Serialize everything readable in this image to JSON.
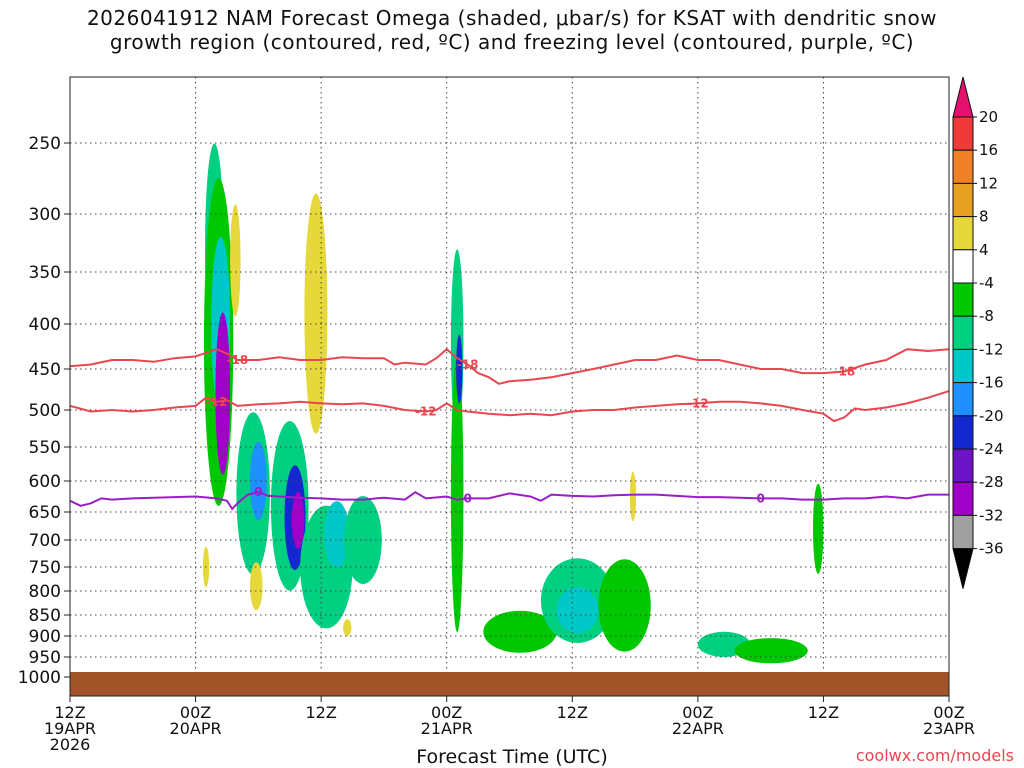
{
  "title_line1": "2026041912 NAM Forecast Omega (shaded, μbar/s) for KSAT with dendritic snow",
  "title_line2": "growth region (contoured, red, ºC) and freezing level (contoured, purple, ºC)",
  "xaxis_title": "Forecast Time (UTC)",
  "credit": "coolwx.com/models",
  "chart_data": {
    "type": "heatmap",
    "yaxis": {
      "ticks": [
        250,
        300,
        350,
        400,
        450,
        500,
        550,
        600,
        650,
        700,
        750,
        800,
        850,
        900,
        950,
        1000
      ],
      "range": [
        1000,
        200
      ],
      "units": "hPa"
    },
    "xaxis": {
      "ticks": [
        {
          "hour": 0,
          "line1": "12Z",
          "line2": "19APR",
          "line3": "2026"
        },
        {
          "hour": 12,
          "line1": "00Z",
          "line2": "20APR",
          "line3": ""
        },
        {
          "hour": 24,
          "line1": "12Z",
          "line2": "",
          "line3": ""
        },
        {
          "hour": 36,
          "line1": "00Z",
          "line2": "21APR",
          "line3": ""
        },
        {
          "hour": 48,
          "line1": "12Z",
          "line2": "",
          "line3": ""
        },
        {
          "hour": 60,
          "line1": "00Z",
          "line2": "22APR",
          "line3": ""
        },
        {
          "hour": 72,
          "line1": "12Z",
          "line2": "",
          "line3": ""
        },
        {
          "hour": 84,
          "line1": "00Z",
          "line2": "23APR",
          "line3": ""
        }
      ],
      "range": [
        0,
        84
      ]
    },
    "colorbar": {
      "labels": [
        "20",
        "16",
        "12",
        "8",
        "4",
        "-4",
        "-8",
        "-12",
        "-16",
        "-20",
        "-24",
        "-28",
        "-32",
        "-36"
      ],
      "colors": [
        "#e3106e",
        "#f03a3a",
        "#f08026",
        "#e8a020",
        "#e6d83a",
        "#ffffff",
        "#00c800",
        "#00d080",
        "#00c8c8",
        "#1e90ff",
        "#1428d2",
        "#6e14c8",
        "#a000c8",
        "#a0a0a0",
        "#000000"
      ]
    },
    "contours": [
      {
        "name": "dgz_minus18",
        "label": "-18",
        "color": "#e8474f",
        "points": [
          [
            0,
            447
          ],
          [
            2,
            445
          ],
          [
            4,
            440
          ],
          [
            6,
            440
          ],
          [
            8,
            442
          ],
          [
            10,
            438
          ],
          [
            12,
            436
          ],
          [
            13,
            432
          ],
          [
            14,
            428
          ],
          [
            15,
            433
          ],
          [
            16,
            440
          ],
          [
            18,
            440
          ],
          [
            20,
            437
          ],
          [
            22,
            440
          ],
          [
            24,
            440
          ],
          [
            26,
            437
          ],
          [
            28,
            438
          ],
          [
            30,
            438
          ],
          [
            31,
            445
          ],
          [
            32,
            443
          ],
          [
            34,
            445
          ],
          [
            35,
            438
          ],
          [
            36,
            428
          ],
          [
            37,
            438
          ],
          [
            38,
            445
          ],
          [
            39,
            455
          ],
          [
            40,
            460
          ],
          [
            41,
            468
          ],
          [
            42,
            465
          ],
          [
            44,
            463
          ],
          [
            46,
            460
          ],
          [
            48,
            455
          ],
          [
            50,
            450
          ],
          [
            52,
            445
          ],
          [
            54,
            440
          ],
          [
            56,
            440
          ],
          [
            58,
            435
          ],
          [
            60,
            440
          ],
          [
            62,
            440
          ],
          [
            64,
            445
          ],
          [
            66,
            450
          ],
          [
            68,
            450
          ],
          [
            70,
            455
          ],
          [
            72,
            455
          ],
          [
            74,
            453
          ],
          [
            76,
            445
          ],
          [
            78,
            440
          ],
          [
            80,
            428
          ],
          [
            82,
            430
          ],
          [
            84,
            428
          ]
        ]
      },
      {
        "name": "dgz_minus12",
        "label": "-12",
        "color": "#e8474f",
        "points": [
          [
            0,
            495
          ],
          [
            2,
            502
          ],
          [
            4,
            500
          ],
          [
            6,
            502
          ],
          [
            8,
            500
          ],
          [
            10,
            497
          ],
          [
            12,
            495
          ],
          [
            13,
            485
          ],
          [
            14,
            490
          ],
          [
            15,
            488
          ],
          [
            16,
            495
          ],
          [
            18,
            493
          ],
          [
            20,
            492
          ],
          [
            22,
            490
          ],
          [
            24,
            492
          ],
          [
            26,
            493
          ],
          [
            28,
            492
          ],
          [
            30,
            495
          ],
          [
            32,
            500
          ],
          [
            34,
            502
          ],
          [
            35,
            500
          ],
          [
            36,
            492
          ],
          [
            37,
            500
          ],
          [
            38,
            502
          ],
          [
            40,
            505
          ],
          [
            42,
            507
          ],
          [
            44,
            505
          ],
          [
            46,
            507
          ],
          [
            48,
            502
          ],
          [
            50,
            500
          ],
          [
            52,
            500
          ],
          [
            54,
            497
          ],
          [
            56,
            495
          ],
          [
            58,
            493
          ],
          [
            60,
            492
          ],
          [
            62,
            490
          ],
          [
            64,
            490
          ],
          [
            66,
            492
          ],
          [
            68,
            495
          ],
          [
            70,
            500
          ],
          [
            72,
            505
          ],
          [
            73,
            515
          ],
          [
            74,
            510
          ],
          [
            75,
            498
          ],
          [
            76,
            500
          ],
          [
            78,
            497
          ],
          [
            80,
            492
          ],
          [
            82,
            485
          ],
          [
            84,
            477
          ]
        ]
      },
      {
        "name": "freezing_level",
        "label": "0",
        "color": "#9a1ec8",
        "points": [
          [
            0,
            632
          ],
          [
            1,
            640
          ],
          [
            2,
            636
          ],
          [
            3,
            628
          ],
          [
            4,
            630
          ],
          [
            6,
            628
          ],
          [
            8,
            627
          ],
          [
            10,
            626
          ],
          [
            12,
            625
          ],
          [
            14,
            628
          ],
          [
            15,
            632
          ],
          [
            15.5,
            645
          ],
          [
            16,
            636
          ],
          [
            17,
            622
          ],
          [
            18,
            618
          ],
          [
            19,
            624
          ],
          [
            20,
            625
          ],
          [
            22,
            627
          ],
          [
            24,
            628
          ],
          [
            26,
            630
          ],
          [
            28,
            630
          ],
          [
            30,
            627
          ],
          [
            32,
            630
          ],
          [
            33,
            618
          ],
          [
            34,
            628
          ],
          [
            36,
            625
          ],
          [
            37,
            630
          ],
          [
            38,
            628
          ],
          [
            40,
            628
          ],
          [
            42,
            620
          ],
          [
            44,
            625
          ],
          [
            45,
            632
          ],
          [
            46,
            622
          ],
          [
            48,
            624
          ],
          [
            50,
            625
          ],
          [
            52,
            623
          ],
          [
            54,
            622
          ],
          [
            56,
            622
          ],
          [
            58,
            624
          ],
          [
            60,
            626
          ],
          [
            62,
            626
          ],
          [
            64,
            627
          ],
          [
            66,
            628
          ],
          [
            68,
            628
          ],
          [
            70,
            630
          ],
          [
            72,
            630
          ],
          [
            74,
            628
          ],
          [
            76,
            628
          ],
          [
            78,
            625
          ],
          [
            80,
            628
          ],
          [
            82,
            622
          ],
          [
            84,
            622
          ]
        ]
      }
    ],
    "omega_blobs": [
      {
        "hour": 13.8,
        "p": 330,
        "rx": 0.9,
        "rp": 90,
        "value": -8
      },
      {
        "hour": 14.2,
        "p": 420,
        "rx": 1.4,
        "rp": 175,
        "value": -6
      },
      {
        "hour": 14.4,
        "p": 400,
        "rx": 0.9,
        "rp": 90,
        "value": -14
      },
      {
        "hour": 14.6,
        "p": 480,
        "rx": 0.7,
        "rp": 100,
        "value": -28
      },
      {
        "hour": 15.8,
        "p": 340,
        "rx": 0.5,
        "rp": 50,
        "value": 4
      },
      {
        "hour": 17.5,
        "p": 620,
        "rx": 1.6,
        "rp": 130,
        "value": -8
      },
      {
        "hour": 18.0,
        "p": 600,
        "rx": 0.8,
        "rp": 60,
        "value": -18
      },
      {
        "hour": 21.0,
        "p": 640,
        "rx": 1.8,
        "rp": 140,
        "value": -10
      },
      {
        "hour": 21.5,
        "p": 660,
        "rx": 1.0,
        "rp": 90,
        "value": -20
      },
      {
        "hour": 21.8,
        "p": 665,
        "rx": 0.6,
        "rp": 50,
        "value": -28
      },
      {
        "hour": 23.5,
        "p": 390,
        "rx": 1.1,
        "rp": 120,
        "value": 4
      },
      {
        "hour": 24.5,
        "p": 750,
        "rx": 2.5,
        "rp": 120,
        "value": -8
      },
      {
        "hour": 25.5,
        "p": 690,
        "rx": 1.2,
        "rp": 60,
        "value": -12
      },
      {
        "hour": 28.0,
        "p": 700,
        "rx": 1.8,
        "rp": 80,
        "value": -8
      },
      {
        "hour": 37.0,
        "p": 420,
        "rx": 0.6,
        "rp": 100,
        "value": -10
      },
      {
        "hour": 37.0,
        "p": 620,
        "rx": 0.6,
        "rp": 220,
        "value": -6
      },
      {
        "hour": 37.2,
        "p": 450,
        "rx": 0.3,
        "rp": 40,
        "value": -20
      },
      {
        "hour": 43.0,
        "p": 890,
        "rx": 3.5,
        "rp": 50,
        "value": -6
      },
      {
        "hour": 48.5,
        "p": 820,
        "rx": 3.5,
        "rp": 90,
        "value": -8
      },
      {
        "hour": 48.5,
        "p": 840,
        "rx": 2.0,
        "rp": 50,
        "value": -12
      },
      {
        "hour": 53.0,
        "p": 830,
        "rx": 2.5,
        "rp": 100,
        "value": -6
      },
      {
        "hour": 53.8,
        "p": 625,
        "rx": 0.3,
        "rp": 40,
        "value": 4
      },
      {
        "hour": 62.5,
        "p": 920,
        "rx": 2.5,
        "rp": 30,
        "value": -8
      },
      {
        "hour": 67.0,
        "p": 935,
        "rx": 3.5,
        "rp": 30,
        "value": -6
      },
      {
        "hour": 71.5,
        "p": 680,
        "rx": 0.5,
        "rp": 80,
        "value": -6
      },
      {
        "hour": 13.0,
        "p": 750,
        "rx": 0.3,
        "rp": 40,
        "value": 4
      },
      {
        "hour": 17.8,
        "p": 790,
        "rx": 0.6,
        "rp": 50,
        "value": 4
      },
      {
        "hour": 26.5,
        "p": 880,
        "rx": 0.4,
        "rp": 20,
        "value": 4
      }
    ]
  }
}
